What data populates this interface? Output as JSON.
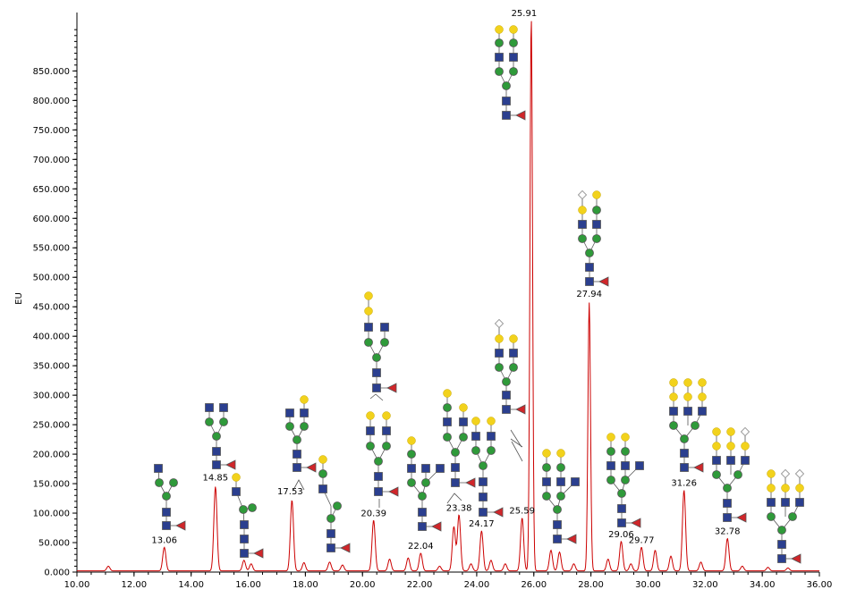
{
  "chart_data": {
    "type": "line",
    "title": "",
    "xlabel": "",
    "ylabel": "EU",
    "xlim": [
      10.0,
      36.0
    ],
    "ylim": [
      0,
      940
    ],
    "grid": false,
    "x_ticks": [
      "10.00",
      "12.00",
      "14.00",
      "16.00",
      "18.00",
      "20.00",
      "22.00",
      "24.00",
      "26.00",
      "28.00",
      "30.00",
      "32.00",
      "34.00",
      "36.00"
    ],
    "y_ticks": [
      "0.000",
      "50.000",
      "100.000",
      "150.000",
      "200.000",
      "250.000",
      "300.000",
      "350.000",
      "400.000",
      "450.000",
      "500.000",
      "550.000",
      "600.000",
      "650.000",
      "700.000",
      "750.000",
      "800.000",
      "850.000"
    ],
    "line_color": "#cc0000",
    "peaks": [
      {
        "x": 11.1,
        "y": 8
      },
      {
        "x": 13.06,
        "y": 40,
        "label": "13.06"
      },
      {
        "x": 14.85,
        "y": 143,
        "label": "14.85"
      },
      {
        "x": 15.85,
        "y": 18
      },
      {
        "x": 16.1,
        "y": 12
      },
      {
        "x": 17.53,
        "y": 120,
        "label": "17.53"
      },
      {
        "x": 17.95,
        "y": 14
      },
      {
        "x": 18.85,
        "y": 15
      },
      {
        "x": 19.3,
        "y": 10
      },
      {
        "x": 20.39,
        "y": 86,
        "label": "20.39"
      },
      {
        "x": 20.95,
        "y": 20
      },
      {
        "x": 21.6,
        "y": 22
      },
      {
        "x": 22.04,
        "y": 30,
        "label": "22.04"
      },
      {
        "x": 22.7,
        "y": 8
      },
      {
        "x": 23.2,
        "y": 75
      },
      {
        "x": 23.38,
        "y": 95,
        "label": "23.38"
      },
      {
        "x": 23.8,
        "y": 12
      },
      {
        "x": 24.17,
        "y": 68,
        "label": "24.17"
      },
      {
        "x": 24.5,
        "y": 18
      },
      {
        "x": 25.0,
        "y": 12
      },
      {
        "x": 25.59,
        "y": 90,
        "label": "25.59"
      },
      {
        "x": 25.91,
        "y": 940,
        "label": "25.91"
      },
      {
        "x": 26.6,
        "y": 35
      },
      {
        "x": 26.9,
        "y": 32
      },
      {
        "x": 27.4,
        "y": 12
      },
      {
        "x": 27.94,
        "y": 455,
        "label": "27.94"
      },
      {
        "x": 28.6,
        "y": 20
      },
      {
        "x": 29.06,
        "y": 50,
        "label": "29.06"
      },
      {
        "x": 29.4,
        "y": 12
      },
      {
        "x": 29.77,
        "y": 40,
        "label": "29.77"
      },
      {
        "x": 30.25,
        "y": 35
      },
      {
        "x": 30.8,
        "y": 25
      },
      {
        "x": 31.26,
        "y": 137,
        "label": "31.26"
      },
      {
        "x": 31.85,
        "y": 15
      },
      {
        "x": 32.78,
        "y": 55,
        "label": "32.78"
      },
      {
        "x": 33.3,
        "y": 8
      },
      {
        "x": 34.2,
        "y": 6
      },
      {
        "x": 34.9,
        "y": 5
      }
    ]
  }
}
